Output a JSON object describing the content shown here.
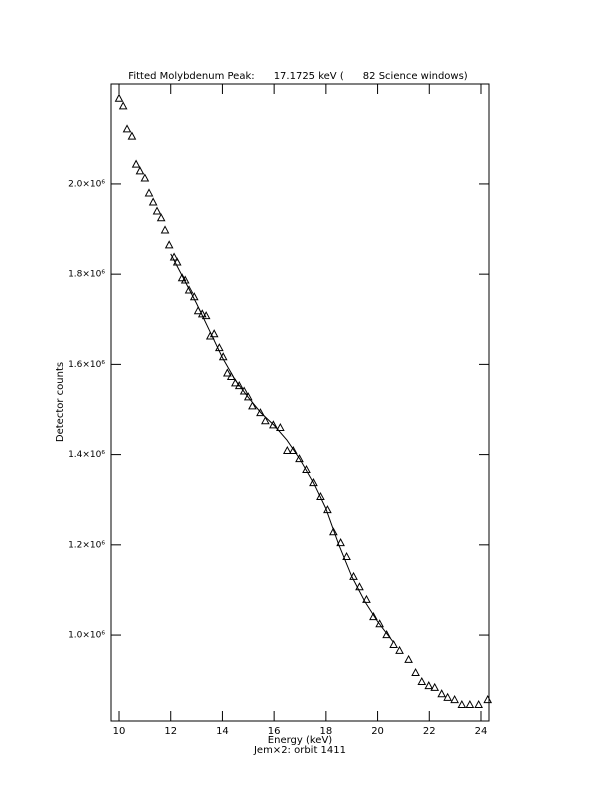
{
  "chart_data": {
    "type": "scatter",
    "title": "Fitted Molybdenum Peak:      17.1725 keV (      82 Science windows)",
    "x_label": "Energy (keV)",
    "subtitle": "Jem×2: orbit 1411",
    "y_label": "Detector counts",
    "xlim": [
      9.69,
      24.31
    ],
    "xticks": [
      10,
      12,
      14,
      16,
      18,
      20,
      22,
      24
    ],
    "ylim": [
      809500,
      2221500
    ],
    "yticks": [
      {
        "value": 1000000,
        "label": "1.0×10⁶"
      },
      {
        "value": 1200000,
        "label": "1.2×10⁶"
      },
      {
        "value": 1400000,
        "label": "1.4×10⁶"
      },
      {
        "value": 1600000,
        "label": "1.6×10⁶"
      },
      {
        "value": 1800000,
        "label": "1.8×10⁶"
      },
      {
        "value": 2000000,
        "label": "2.0×10⁶"
      }
    ],
    "grid": false,
    "series": [
      {
        "marker": "triangle",
        "color": "#000000",
        "x": [
          10.0,
          10.16,
          10.31,
          10.5,
          10.66,
          10.81,
          11.0,
          11.16,
          11.32,
          11.47,
          11.63,
          11.78,
          11.94,
          12.13,
          12.25,
          12.44,
          12.56,
          12.71,
          12.91,
          13.06,
          13.22,
          13.37,
          13.53,
          13.68,
          13.88,
          14.03,
          14.19,
          14.34,
          14.5,
          14.65,
          14.84,
          15.0,
          15.16,
          15.47,
          15.66,
          15.97,
          16.24,
          16.51,
          16.74,
          16.98,
          17.25,
          17.52,
          17.79,
          18.06,
          18.29,
          18.57,
          18.8,
          19.07,
          19.3,
          19.57,
          19.84,
          20.08,
          20.35,
          20.62,
          20.85,
          21.2,
          21.47,
          21.71,
          21.98,
          22.21,
          22.48,
          22.71,
          22.98,
          23.26,
          23.57,
          23.91,
          24.26
        ],
        "values": [
          2190000,
          2173000,
          2122000,
          2106000,
          2044000,
          2029000,
          2013000,
          1980000,
          1960000,
          1940000,
          1925000,
          1898000,
          1865000,
          1838000,
          1827000,
          1792000,
          1787000,
          1765000,
          1750000,
          1719000,
          1712000,
          1708000,
          1663000,
          1668000,
          1637000,
          1617000,
          1581000,
          1573000,
          1559000,
          1553000,
          1541000,
          1528000,
          1508000,
          1493000,
          1475000,
          1466000,
          1460000,
          1409000,
          1409000,
          1391000,
          1367000,
          1338000,
          1307000,
          1278000,
          1229000,
          1205000,
          1174000,
          1130000,
          1107000,
          1079000,
          1041000,
          1025000,
          1001000,
          979000,
          966000,
          946000,
          917000,
          897000,
          888000,
          884000,
          870000,
          862000,
          857000,
          846000,
          846000,
          846000,
          857000
        ]
      },
      {
        "style": "line",
        "color": "#000000",
        "x": [
          12.0,
          12.5,
          13.0,
          13.5,
          14.0,
          14.5,
          15.0,
          15.5,
          16.0,
          16.5,
          17.0,
          17.5,
          18.0,
          18.5,
          19.0,
          19.5,
          20.0,
          20.6
        ],
        "values": [
          1845000,
          1790000,
          1735000,
          1675000,
          1615000,
          1565000,
          1527000,
          1492000,
          1465000,
          1432000,
          1390000,
          1340000,
          1280000,
          1200000,
          1130000,
          1075000,
          1030000,
          985000
        ]
      }
    ]
  }
}
